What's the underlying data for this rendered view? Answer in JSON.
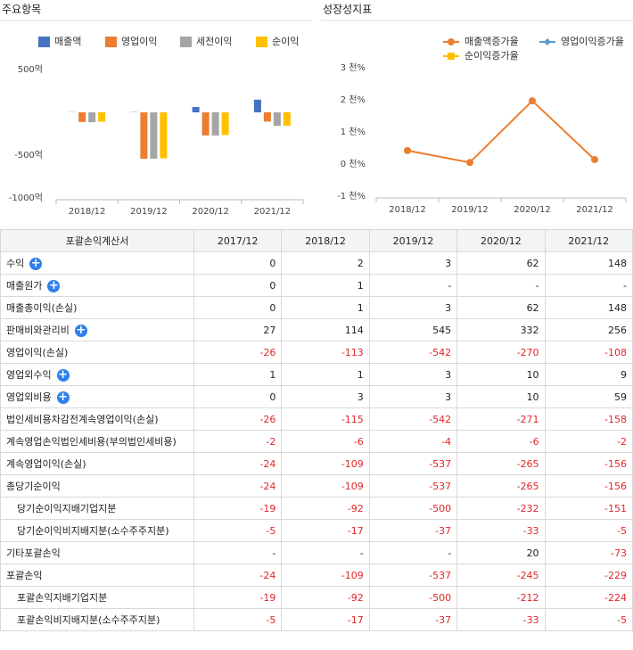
{
  "chart_data": [
    {
      "type": "bar",
      "title": "주요항목",
      "categories": [
        "2018/12",
        "2019/12",
        "2020/12",
        "2021/12"
      ],
      "series": [
        {
          "name": "매출액",
          "color": "#4472c4",
          "values": [
            2,
            3,
            62,
            148
          ]
        },
        {
          "name": "영업이익",
          "color": "#ed7d31",
          "values": [
            -113,
            -542,
            -270,
            -108
          ]
        },
        {
          "name": "세전이익",
          "color": "#a5a5a5",
          "values": [
            -115,
            -542,
            -271,
            -158
          ]
        },
        {
          "name": "순이익",
          "color": "#ffc000",
          "values": [
            -109,
            -537,
            -265,
            -156
          ]
        }
      ],
      "ylim": [
        -1000,
        500
      ],
      "yticks": [
        {
          "value": 500,
          "label": "500억"
        },
        {
          "value": -500,
          "label": "-500억"
        },
        {
          "value": -1000,
          "label": "-1000억"
        }
      ]
    },
    {
      "type": "line",
      "title": "성장성지표",
      "categories": [
        "2018/12",
        "2019/12",
        "2020/12",
        "2021/12"
      ],
      "series": [
        {
          "name": "매출액증가율",
          "color": "#ed7d31",
          "marker": "circle",
          "values": [
            0.42,
            0.05,
            1.97,
            0.14
          ]
        },
        {
          "name": "영업이익증가율",
          "color": "#5b9bd5",
          "marker": "diamond",
          "values": [
            null,
            null,
            null,
            null
          ]
        },
        {
          "name": "순이익증가율",
          "color": "#ffc000",
          "marker": "square",
          "values": [
            null,
            null,
            null,
            null
          ]
        }
      ],
      "ylim": [
        -1,
        3
      ],
      "yticks": [
        {
          "value": 3,
          "label": "3 천%"
        },
        {
          "value": 2,
          "label": "2 천%"
        },
        {
          "value": 1,
          "label": "1 천%"
        },
        {
          "value": 0,
          "label": "0 천%"
        },
        {
          "value": -1,
          "label": "-1 천%"
        }
      ]
    }
  ],
  "table": {
    "header": [
      "포괄손익계산서",
      "2017/12",
      "2018/12",
      "2019/12",
      "2020/12",
      "2021/12"
    ],
    "rows": [
      {
        "label": "수익",
        "expandable": true,
        "values": [
          0,
          2,
          3,
          62,
          148
        ]
      },
      {
        "label": "매출원가",
        "expandable": true,
        "values": [
          0,
          1,
          "-",
          "-",
          "-"
        ]
      },
      {
        "label": "매출총이익(손실)",
        "values": [
          0,
          1,
          3,
          62,
          148
        ]
      },
      {
        "label": "판매비와관리비",
        "expandable": true,
        "values": [
          27,
          114,
          545,
          332,
          256
        ]
      },
      {
        "label": "영업이익(손실)",
        "values": [
          -26,
          -113,
          -542,
          -270,
          -108
        ]
      },
      {
        "label": "영업외수익",
        "expandable": true,
        "values": [
          1,
          1,
          3,
          10,
          9
        ]
      },
      {
        "label": "영업외비용",
        "expandable": true,
        "values": [
          0,
          3,
          3,
          10,
          59
        ]
      },
      {
        "label": "법인세비용차감전계속영업이익(손실)",
        "values": [
          -26,
          -115,
          -542,
          -271,
          -158
        ]
      },
      {
        "label": "계속영업손익법인세비용(부의법인세비용)",
        "values": [
          -2,
          -6,
          -4,
          -6,
          -2
        ]
      },
      {
        "label": "계속영업이익(손실)",
        "values": [
          -24,
          -109,
          -537,
          -265,
          -156
        ]
      },
      {
        "label": "총당기순이익",
        "values": [
          -24,
          -109,
          -537,
          -265,
          -156
        ]
      },
      {
        "label": "당기순이익지배기업지분",
        "indent": 1,
        "values": [
          -19,
          -92,
          -500,
          -232,
          -151
        ]
      },
      {
        "label": "당기순이익비지배지분(소수주주지분)",
        "indent": 1,
        "values": [
          -5,
          -17,
          -37,
          -33,
          -5
        ]
      },
      {
        "label": "기타포괄손익",
        "values": [
          "-",
          "-",
          "-",
          20,
          -73
        ]
      },
      {
        "label": "포괄손익",
        "values": [
          -24,
          -109,
          -537,
          -245,
          -229
        ]
      },
      {
        "label": "포괄손익지배기업지분",
        "indent": 1,
        "values": [
          -19,
          -92,
          -500,
          -212,
          -224
        ]
      },
      {
        "label": "포괄손익비지배지분(소수주주지분)",
        "indent": 1,
        "values": [
          -5,
          -17,
          -37,
          -33,
          -5
        ]
      }
    ]
  }
}
